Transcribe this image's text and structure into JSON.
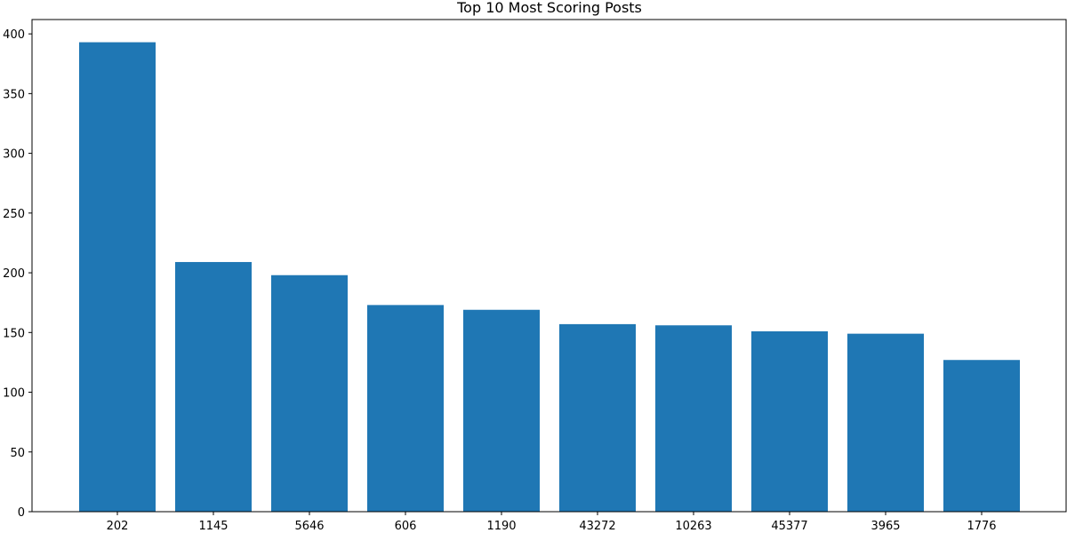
{
  "chart_data": {
    "type": "bar",
    "title": "Top 10 Most Scoring Posts",
    "xlabel": "",
    "ylabel": "",
    "categories": [
      "202",
      "1145",
      "5646",
      "606",
      "1190",
      "43272",
      "10263",
      "45377",
      "3965",
      "1776"
    ],
    "values": [
      393,
      209,
      198,
      173,
      169,
      157,
      156,
      151,
      149,
      127
    ],
    "ylim": [
      0,
      412
    ],
    "yticks": [
      0,
      50,
      100,
      150,
      200,
      250,
      300,
      350,
      400
    ],
    "grid": false,
    "legend": "none",
    "bar_color": "#1f77b4"
  }
}
